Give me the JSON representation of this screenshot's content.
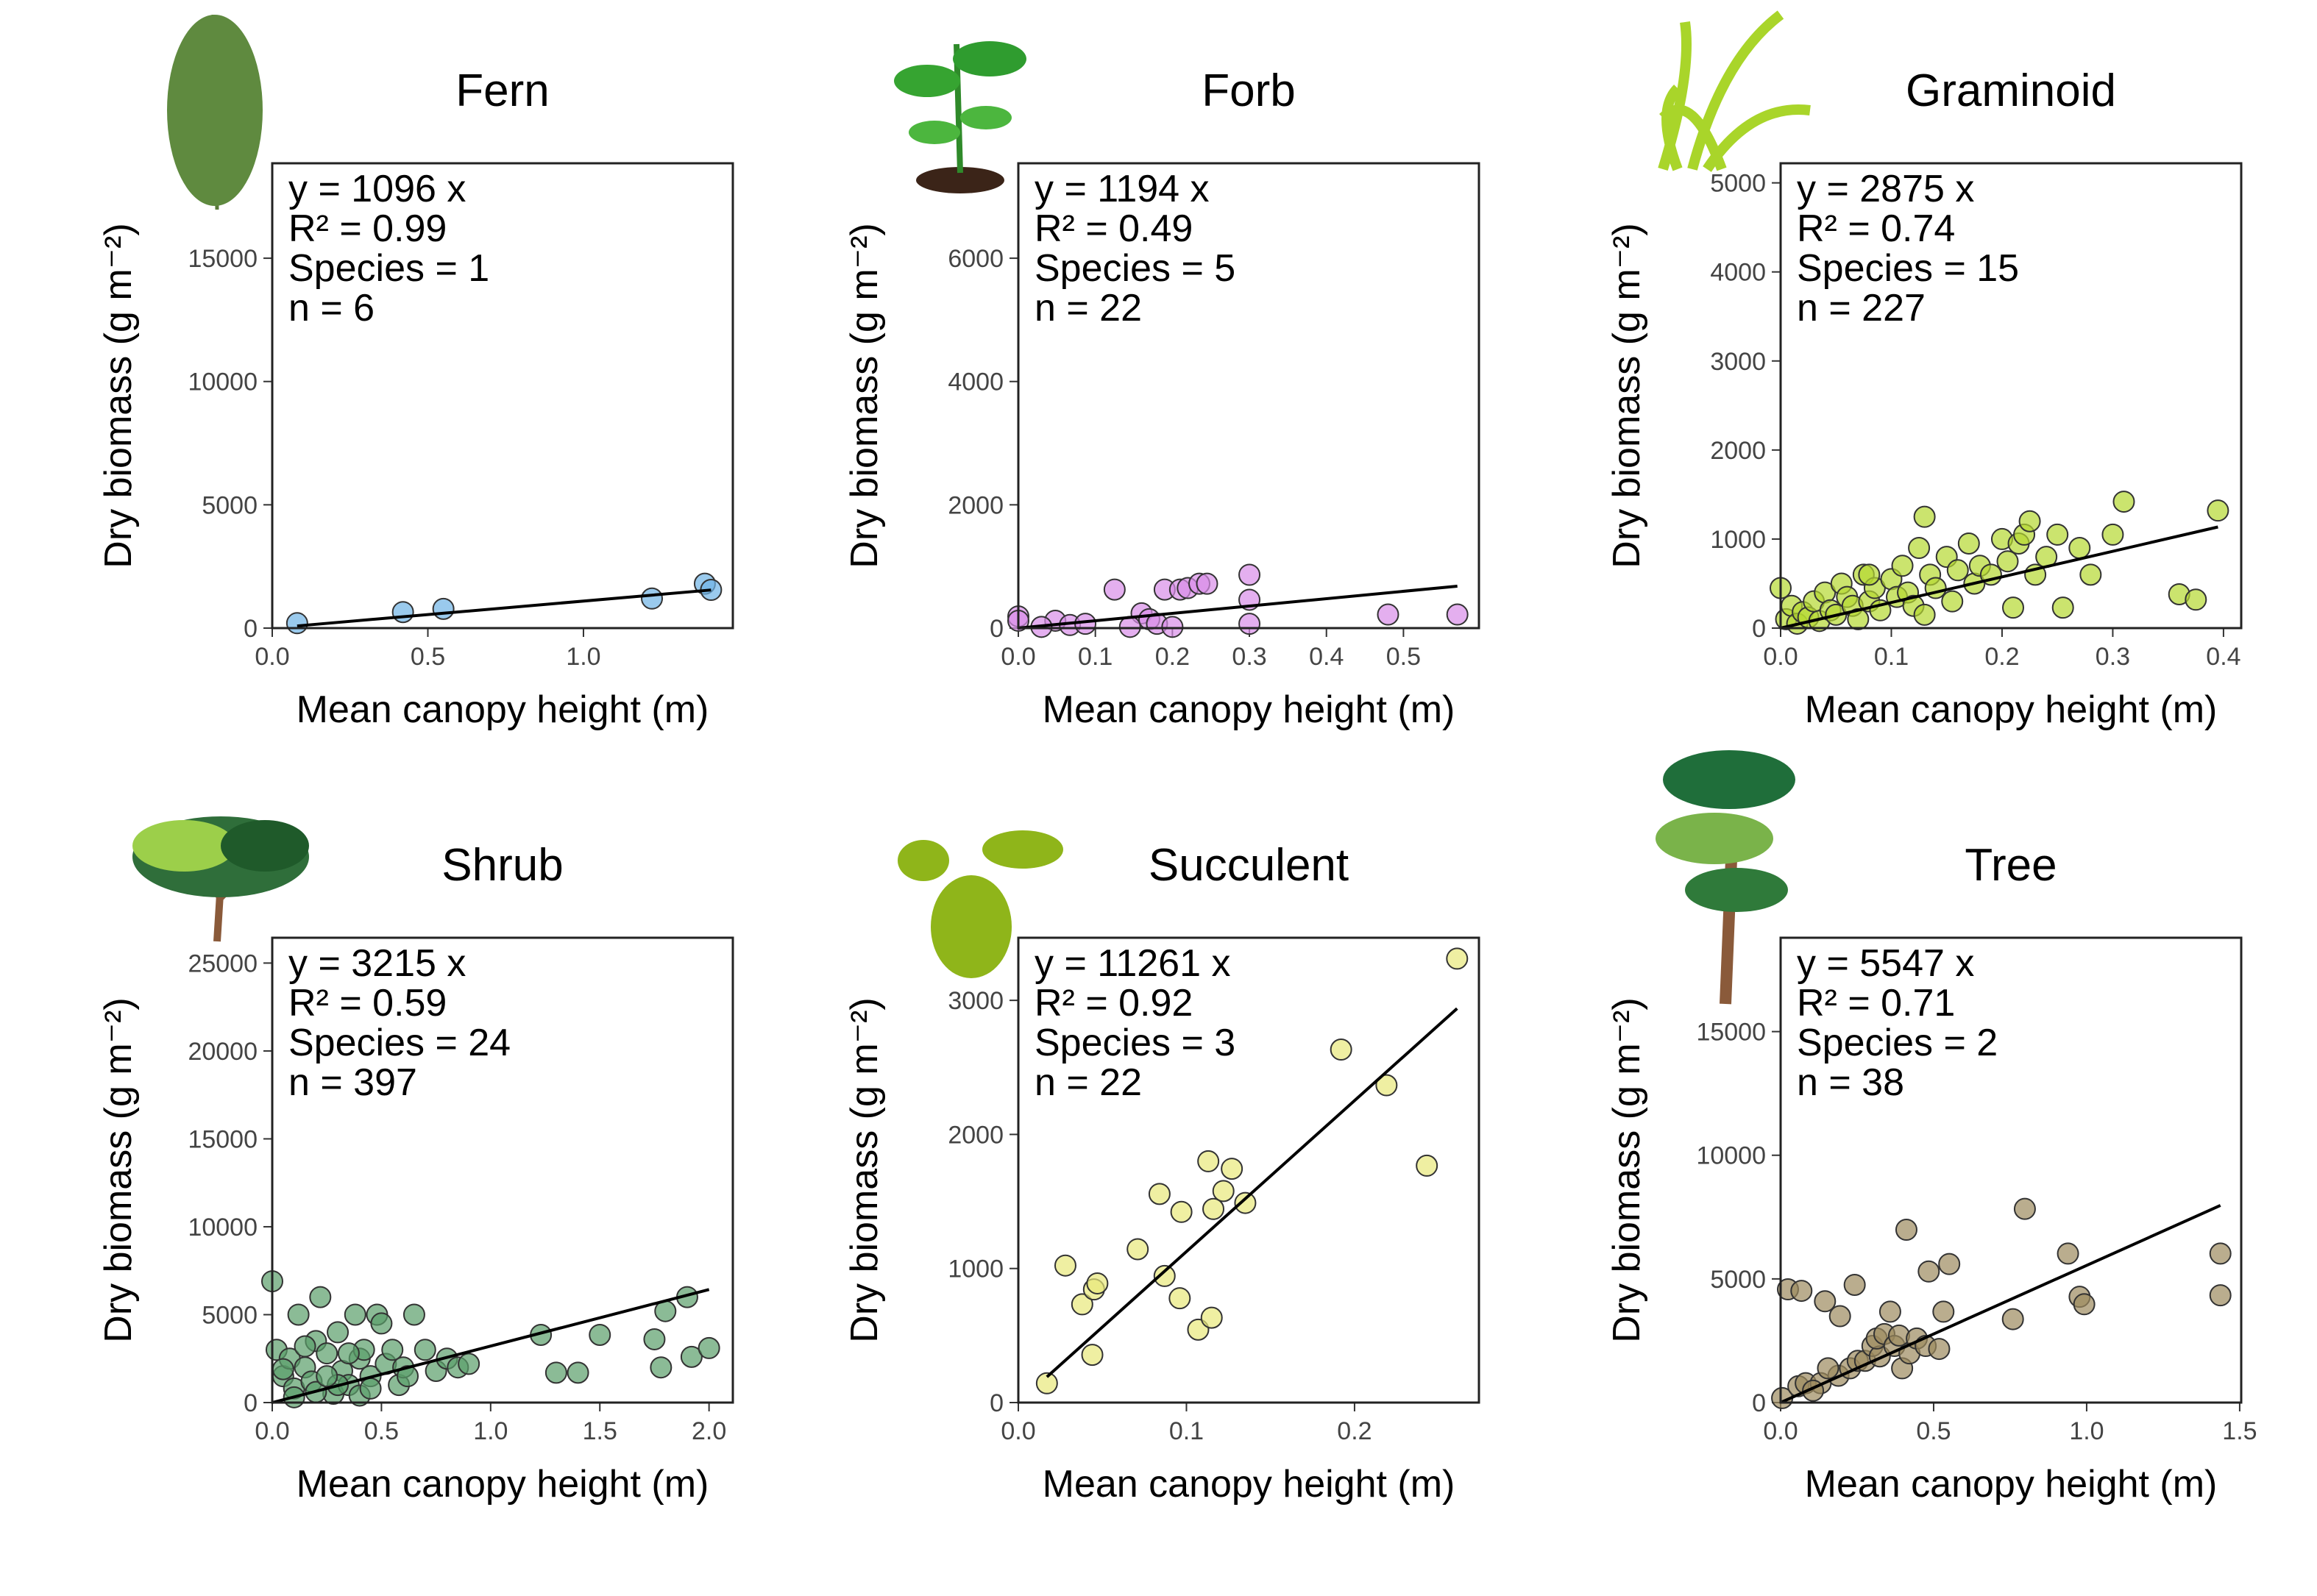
{
  "chart_data": [
    {
      "type": "scatter",
      "title": "Fern",
      "annotations": [
        "y = 1096 x",
        "R² = 0.99",
        "Species = 1",
        "n = 6"
      ],
      "fit_slope": 1096,
      "xlabel": "Mean canopy height (m)",
      "ylabel": "Dry biomass (g m⁻²)",
      "color": "#6fb3e6",
      "xlim": [
        0,
        1.48
      ],
      "ylim": [
        0,
        18850
      ],
      "xticks": [
        {
          "value": 0,
          "label": "0.0"
        },
        0.5,
        {
          "value": 1,
          "label": "1.0"
        }
      ],
      "yticks": [
        0,
        5000,
        10000,
        15000
      ],
      "x": [
        0.08,
        0.42,
        0.55,
        1.22,
        1.39,
        1.41
      ],
      "y": [
        200,
        650,
        780,
        1200,
        1800,
        1550
      ]
    },
    {
      "type": "scatter",
      "title": "Forb",
      "annotations": [
        "y = 1194 x",
        "R² = 0.49",
        "Species = 5",
        "n = 22"
      ],
      "fit_slope": 1194,
      "xlabel": "Mean canopy height (m)",
      "ylabel": "Dry biomass (g m⁻²)",
      "color": "#d98de8",
      "xlim": [
        0,
        0.598
      ],
      "ylim": [
        0,
        7540
      ],
      "xticks": [
        {
          "value": 0,
          "label": "0.0"
        },
        0.1,
        0.2,
        0.3,
        0.4,
        0.5
      ],
      "yticks": [
        0,
        2000,
        4000,
        6000
      ],
      "x": [
        0,
        0,
        0.048,
        0.067,
        0.125,
        0.16,
        0.17,
        0.19,
        0.21,
        0.22,
        0.235,
        0.245,
        0.3,
        0.3,
        0.3,
        0.48,
        0.57,
        0.03,
        0.087,
        0.18,
        0.2,
        0.145
      ],
      "y": [
        190,
        120,
        120,
        50,
        625,
        240,
        145,
        625,
        625,
        650,
        720,
        720,
        865,
        460,
        70,
        220,
        220,
        20,
        70,
        70,
        20,
        20
      ]
    },
    {
      "type": "scatter",
      "title": "Graminoid",
      "annotations": [
        "y = 2875 x",
        "R² = 0.74",
        "Species = 15",
        "n = 227"
      ],
      "fit_slope": 2875,
      "xlabel": "Mean canopy height (m)",
      "ylabel": "Dry biomass (g m⁻²)",
      "color": "#b5d930",
      "xlim": [
        0,
        0.416
      ],
      "ylim": [
        0,
        5220
      ],
      "xticks": [
        {
          "value": 0,
          "label": "0.0"
        },
        0.1,
        0.2,
        0.3,
        0.4
      ],
      "yticks": [
        0,
        1000,
        2000,
        3000,
        4000,
        5000
      ],
      "x": [
        0,
        0.005,
        0.01,
        0.015,
        0.02,
        0.025,
        0.03,
        0.035,
        0.04,
        0.045,
        0.05,
        0.055,
        0.06,
        0.065,
        0.07,
        0.075,
        0.08,
        0.085,
        0.09,
        0.1,
        0.105,
        0.11,
        0.115,
        0.12,
        0.125,
        0.13,
        0.135,
        0.14,
        0.15,
        0.155,
        0.16,
        0.17,
        0.175,
        0.18,
        0.19,
        0.2,
        0.205,
        0.21,
        0.215,
        0.22,
        0.225,
        0.23,
        0.24,
        0.25,
        0.255,
        0.27,
        0.28,
        0.3,
        0.31,
        0.36,
        0.375,
        0.395,
        0.08,
        0.13
      ],
      "y": [
        450,
        100,
        250,
        50,
        180,
        120,
        300,
        80,
        400,
        200,
        150,
        500,
        350,
        250,
        100,
        600,
        300,
        450,
        200,
        550,
        350,
        700,
        400,
        250,
        900,
        1250,
        600,
        450,
        800,
        300,
        650,
        950,
        500,
        700,
        600,
        1000,
        750,
        230,
        950,
        1050,
        1200,
        600,
        800,
        1050,
        230,
        900,
        600,
        1050,
        1420,
        380,
        320,
        1320,
        600,
        150
      ]
    },
    {
      "type": "scatter",
      "title": "Shrub",
      "annotations": [
        "y = 3215 x",
        "R² = 0.59",
        "Species = 24",
        "n = 397"
      ],
      "fit_slope": 3215,
      "xlabel": "Mean canopy height (m)",
      "ylabel": "Dry biomass (g m⁻²)",
      "color": "#5a9e6a",
      "xlim": [
        0,
        2.109
      ],
      "ylim": [
        0,
        26440
      ],
      "xticks": [
        {
          "value": 0,
          "label": "0.0"
        },
        0.5,
        {
          "value": 1,
          "label": "1.0"
        },
        1.5,
        {
          "value": 2,
          "label": "2.0"
        }
      ],
      "yticks": [
        0,
        5000,
        10000,
        15000,
        20000,
        25000
      ],
      "x": [
        0,
        0.02,
        0.05,
        0.08,
        0.1,
        0.12,
        0.15,
        0.18,
        0.2,
        0.22,
        0.25,
        0.28,
        0.3,
        0.32,
        0.35,
        0.38,
        0.4,
        0.42,
        0.45,
        0.48,
        0.5,
        0.52,
        0.55,
        0.58,
        0.6,
        0.65,
        0.7,
        0.75,
        0.8,
        0.85,
        0.9,
        0.1,
        0.2,
        0.3,
        0.4,
        0.15,
        0.25,
        0.35,
        0.45,
        0.05,
        0.62,
        1.23,
        1.3,
        1.4,
        1.5,
        1.75,
        1.78,
        1.8,
        1.9,
        1.92,
        2.0
      ],
      "y": [
        6900,
        3000,
        1500,
        2500,
        800,
        5000,
        2000,
        1200,
        3500,
        6000,
        2800,
        500,
        4000,
        1800,
        1000,
        5000,
        2500,
        3000,
        1500,
        5000,
        4500,
        2200,
        3000,
        1000,
        2000,
        5000,
        3000,
        1800,
        2500,
        2000,
        2200,
        300,
        600,
        1000,
        400,
        3200,
        1500,
        2800,
        800,
        1900,
        1500,
        3850,
        1700,
        1700,
        3850,
        3600,
        2000,
        5200,
        6000,
        2600,
        3100
      ]
    },
    {
      "type": "scatter",
      "title": "Succulent",
      "annotations": [
        "y = 11261 x",
        "R² = 0.92",
        "Species = 3",
        "n = 22"
      ],
      "fit_slope": 11261,
      "xlabel": "Mean canopy height (m)",
      "ylabel": "Dry biomass (g m⁻²)",
      "color": "#e8e87a",
      "xlim": [
        0,
        0.274
      ],
      "ylim": [
        0,
        3467
      ],
      "xticks": [
        {
          "value": 0,
          "label": "0.0"
        },
        0.1,
        0.2
      ],
      "yticks": [
        0,
        1000,
        2000,
        3000
      ],
      "x": [
        0.017,
        0.028,
        0.038,
        0.045,
        0.047,
        0.044,
        0.071,
        0.084,
        0.087,
        0.096,
        0.097,
        0.107,
        0.113,
        0.115,
        0.116,
        0.122,
        0.127,
        0.135,
        0.192,
        0.219,
        0.243,
        0.261
      ],
      "y": [
        144,
        1022,
        733,
        844,
        889,
        356,
        1144,
        1556,
        944,
        778,
        1422,
        544,
        1800,
        633,
        1444,
        1578,
        1744,
        1489,
        2633,
        2367,
        1767,
        3311
      ]
    },
    {
      "type": "scatter",
      "title": "Tree",
      "annotations": [
        "y = 5547 x",
        "R² = 0.71",
        "Species = 2",
        "n = 38"
      ],
      "fit_slope": 5547,
      "xlabel": "Mean canopy height (m)",
      "ylabel": "Dry biomass (g m⁻²)",
      "color": "#9c8a5e",
      "xlim": [
        0,
        1.505
      ],
      "ylim": [
        0,
        18795
      ],
      "xticks": [
        {
          "value": 0,
          "label": "0.0"
        },
        0.5,
        {
          "value": 1,
          "label": "1.0"
        },
        1.5
      ],
      "yticks": [
        0,
        5000,
        10000,
        15000
      ],
      "x": [
        0.005,
        0.024,
        0.068,
        0.058,
        0.082,
        0.131,
        0.145,
        0.194,
        0.189,
        0.227,
        0.242,
        0.252,
        0.276,
        0.3,
        0.324,
        0.358,
        0.314,
        0.339,
        0.372,
        0.387,
        0.397,
        0.411,
        0.421,
        0.445,
        0.474,
        0.484,
        0.518,
        0.532,
        0.551,
        0.759,
        0.798,
        0.939,
        0.977,
        0.992,
        1.437,
        1.437,
        0.155,
        0.106
      ],
      "y": [
        181,
        4578,
        4518,
        663,
        783,
        783,
        4096,
        3494,
        1084,
        1386,
        4759,
        1687,
        1687,
        2289,
        1867,
        3675,
        2590,
        2771,
        2289,
        2711,
        1386,
        6988,
        1988,
        2590,
        2289,
        5301,
        2169,
        3675,
        5602,
        3373,
        7831,
        6024,
        4277,
        3976,
        6024,
        4337,
        1386,
        482
      ]
    }
  ]
}
